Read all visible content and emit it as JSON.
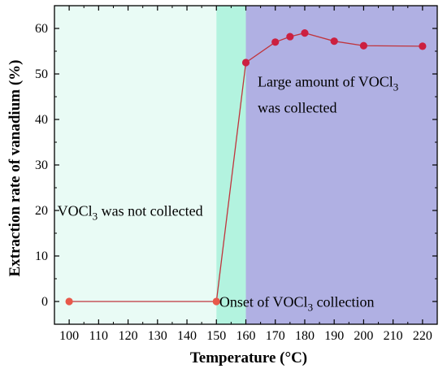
{
  "chart_data": {
    "type": "line",
    "xlabel": "Temperature (°C)",
    "ylabel": "Extraction rate of vanadium (%)",
    "xlim": [
      95,
      225
    ],
    "ylim": [
      -5,
      65
    ],
    "x_ticks": [
      100,
      110,
      120,
      130,
      140,
      150,
      160,
      170,
      180,
      190,
      200,
      210,
      220
    ],
    "y_ticks": [
      0,
      10,
      20,
      30,
      40,
      50,
      60
    ],
    "grid": false,
    "series": [
      {
        "x": [
          100,
          150,
          160,
          170,
          175,
          180,
          190,
          200,
          220
        ],
        "values": [
          0,
          0,
          52.5,
          57,
          58.2,
          59,
          57.2,
          56.2,
          56.1
        ]
      }
    ],
    "regions": [
      {
        "x_start": 95,
        "x_end": 150,
        "color": "#e9fbf5"
      },
      {
        "x_start": 150,
        "x_end": 160,
        "color": "#b3f3df"
      },
      {
        "x_start": 160,
        "x_end": 225,
        "color": "#b0b0e3"
      }
    ],
    "annotations": [
      {
        "text": "VOCl",
        "sub": "3",
        "suffix": " was not collected",
        "x": 96,
        "y": 18.8
      },
      {
        "text": "Onset of VOCl",
        "sub": "3",
        "suffix": " collection",
        "x": 151,
        "y": -1.2
      },
      {
        "text": "Large amount of VOCl",
        "sub": "3",
        "suffix": "",
        "x": 164,
        "y": 47.2
      },
      {
        "text": "was collected",
        "sub": "",
        "suffix": "",
        "x": 164,
        "y": 41.5
      }
    ],
    "colors": {
      "line": "#c0343c",
      "marker": "#cc2040",
      "marker_first": "#e8584a"
    }
  }
}
